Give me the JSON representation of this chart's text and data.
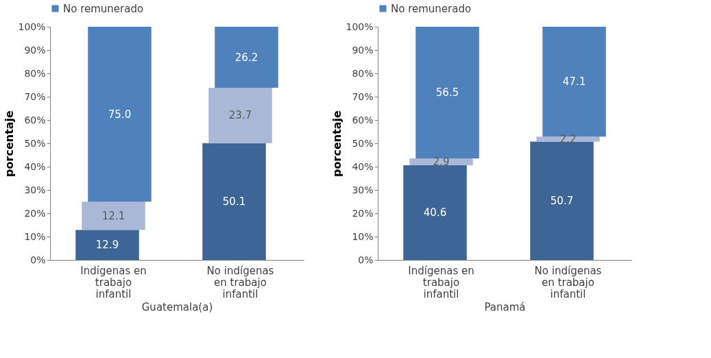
{
  "chart_data": [
    {
      "type": "bar",
      "stacked": true,
      "xlabel": "Guatemala(a)",
      "ylabel": "porcentaje",
      "categories": [
        "Indígenas en trabajo infantil",
        "No indígenas en trabajo infantil"
      ],
      "series": [
        {
          "color": "#3d6596",
          "values": [
            12.9,
            50.1
          ]
        },
        {
          "color": "#a9b8d6",
          "values": [
            12.1,
            23.7
          ]
        },
        {
          "name": "No remunerado",
          "color": "#4f81bd",
          "values": [
            75.0,
            26.2
          ],
          "value_labels": [
            "75.0",
            "26.2"
          ]
        }
      ],
      "ylim": [
        0,
        100
      ],
      "yticks": [
        {
          "value": 0,
          "label": "0%"
        },
        {
          "value": 10,
          "label": "10%"
        },
        {
          "value": 20,
          "label": "20%"
        },
        {
          "value": 30,
          "label": "30%"
        },
        {
          "value": 40,
          "label": "40%"
        },
        {
          "value": 50,
          "label": "50%"
        },
        {
          "value": 60,
          "label": "60%"
        },
        {
          "value": 70,
          "label": "70%"
        },
        {
          "value": 80,
          "label": "80%"
        },
        {
          "value": 90,
          "label": "90%"
        },
        {
          "value": 100,
          "label": "100%"
        }
      ],
      "data_labels": true,
      "legend": "top",
      "grid": false
    },
    {
      "type": "bar",
      "stacked": true,
      "xlabel": "Panamá",
      "ylabel": "porcentaje",
      "categories": [
        "Indígenas en trabajo infantil",
        "No indígenas en trabajo infantil"
      ],
      "series": [
        {
          "color": "#3d6596",
          "values": [
            40.6,
            50.7
          ]
        },
        {
          "color": "#a9b8d6",
          "values": [
            2.9,
            2.2
          ]
        },
        {
          "name": "No remunerado",
          "color": "#4f81bd",
          "values": [
            56.5,
            47.1
          ]
        }
      ],
      "ylim": [
        0,
        100
      ],
      "yticks": [
        {
          "value": 0,
          "label": "0%"
        },
        {
          "value": 10,
          "label": "10%"
        },
        {
          "value": 20,
          "label": "20%"
        },
        {
          "value": 30,
          "label": "30%"
        },
        {
          "value": 40,
          "label": "40%"
        },
        {
          "value": 50,
          "label": "50%"
        },
        {
          "value": 60,
          "label": "60%"
        },
        {
          "value": 70,
          "label": "70%"
        },
        {
          "value": 80,
          "label": "80%"
        },
        {
          "value": 90,
          "label": "90%"
        },
        {
          "value": 100,
          "label": "100%"
        }
      ],
      "data_labels": true,
      "legend": "top",
      "grid": false
    }
  ]
}
